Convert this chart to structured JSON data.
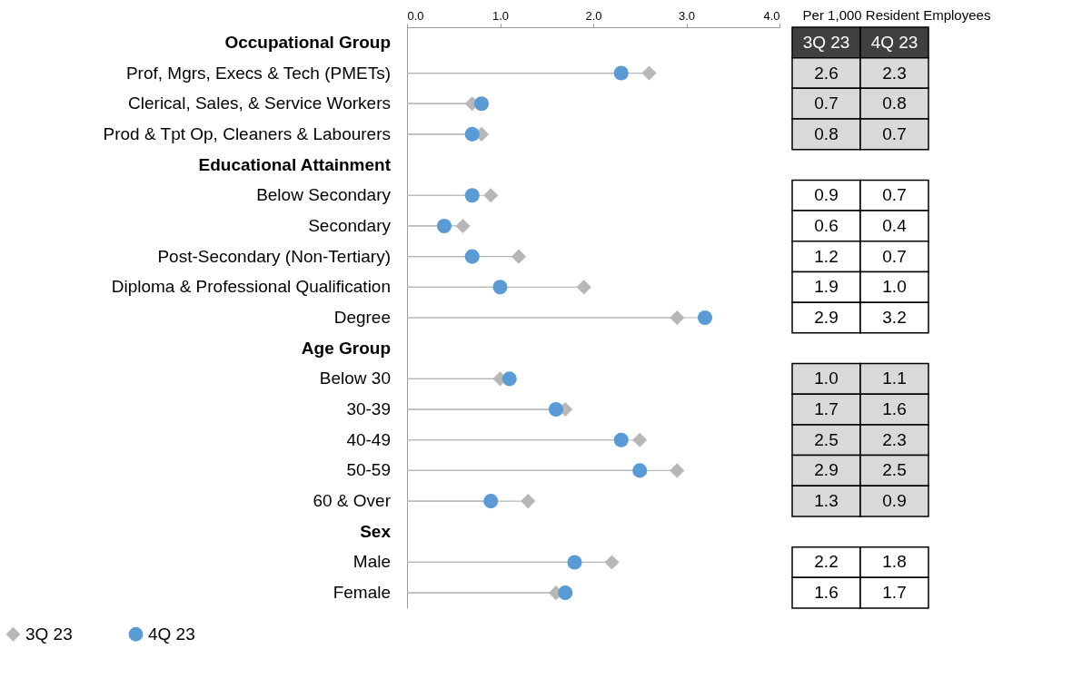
{
  "chart_data": [
    {
      "type": "lollipop",
      "orientation": "horizontal",
      "categories": [
        "Occupational Group",
        "Prof, Mgrs, Execs & Tech (PMETs)",
        "Clerical, Sales, & Service Workers",
        "Prod & Tpt Op, Cleaners & Labourers",
        "Educational Attainment",
        "Below Secondary",
        "Secondary",
        "Post-Secondary (Non-Tertiary)",
        "Diploma & Professional Qualification",
        "Degree",
        "Age Group",
        "Below 30",
        "30-39",
        "40-49",
        "50-59",
        "60 & Over",
        "Sex",
        "Male",
        "Female"
      ],
      "series": [
        {
          "name": "3Q 23",
          "color": "#b7b7b7",
          "marker": "diamond",
          "values": [
            null,
            2.6,
            0.7,
            0.8,
            null,
            0.9,
            0.6,
            1.2,
            1.9,
            2.9,
            null,
            1.0,
            1.7,
            2.5,
            2.9,
            1.3,
            null,
            2.2,
            1.6
          ]
        },
        {
          "name": "4Q 23",
          "color": "#5b9bd5",
          "marker": "circle",
          "values": [
            null,
            2.3,
            0.8,
            0.7,
            null,
            0.7,
            0.4,
            0.7,
            1.0,
            3.2,
            null,
            1.1,
            1.6,
            2.3,
            2.5,
            0.9,
            null,
            1.8,
            1.7
          ]
        }
      ],
      "xlim": [
        0,
        4
      ],
      "xticks": [
        {
          "value": 0,
          "label": "0.0"
        },
        {
          "value": 1,
          "label": "1.0"
        },
        {
          "value": 2,
          "label": "2.0"
        },
        {
          "value": 3,
          "label": "3.0"
        },
        {
          "value": 4,
          "label": "4.0"
        }
      ],
      "grid": false,
      "legend": "bottom"
    },
    {
      "type": "other",
      "title": "Per 1,000 Resident Employees",
      "annotations": [
        "3Q 23",
        "4Q 23",
        "2.6",
        "2.3",
        "0.7",
        "0.8",
        "0.8",
        "0.7"
      ]
    },
    {
      "type": "other",
      "annotations": [
        "0.9",
        "0.7",
        "0.6",
        "0.4",
        "1.2",
        "0.7",
        "1.9",
        "1.0",
        "2.9",
        "3.2"
      ]
    },
    {
      "type": "other",
      "annotations": [
        "1.0",
        "1.1",
        "1.7",
        "1.6",
        "2.5",
        "2.3",
        "2.9",
        "2.5",
        "1.3",
        "0.9"
      ]
    },
    {
      "type": "other",
      "annotations": [
        "2.2",
        "1.8",
        "1.6",
        "1.7"
      ]
    }
  ]
}
